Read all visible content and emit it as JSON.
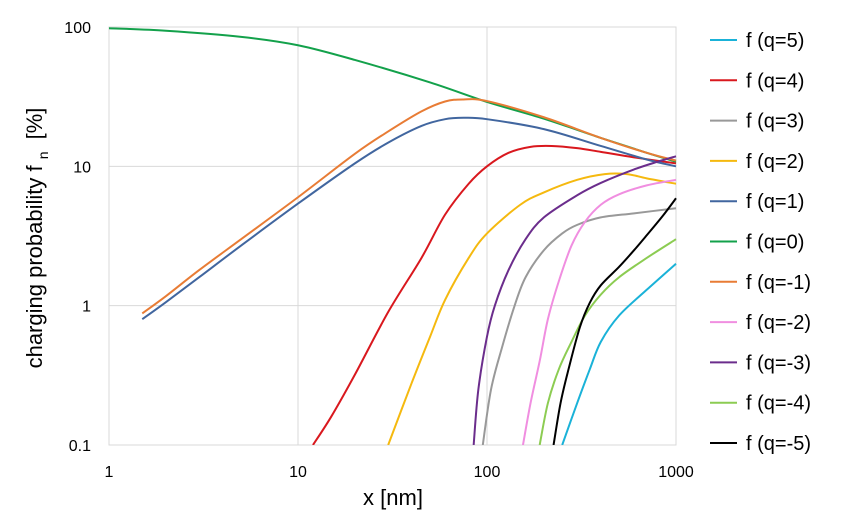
{
  "chart_data": {
    "type": "line",
    "xlabel": "x [nm]",
    "ylabel": "charging probability f",
    "ylabel_subscript": "n",
    "ylabel_unit": "[%]",
    "x_scale": "log",
    "y_scale": "log",
    "xlim": [
      1,
      1000
    ],
    "ylim": [
      0.1,
      100
    ],
    "x_ticks": [
      "1",
      "10",
      "100",
      "1000"
    ],
    "y_ticks": [
      "0.1",
      "1",
      "10",
      "100"
    ],
    "grid": true,
    "legend_position": "right",
    "series": [
      {
        "name": "f (q=5)",
        "color": "#1ab2d8",
        "points": [
          [
            250,
            0.1
          ],
          [
            300,
            0.2
          ],
          [
            350,
            0.35
          ],
          [
            400,
            0.55
          ],
          [
            500,
            0.85
          ],
          [
            700,
            1.3
          ],
          [
            1000,
            2.0
          ]
        ]
      },
      {
        "name": "f (q=4)",
        "color": "#d9181e",
        "points": [
          [
            12,
            0.1
          ],
          [
            15,
            0.16
          ],
          [
            20,
            0.32
          ],
          [
            30,
            0.9
          ],
          [
            45,
            2.2
          ],
          [
            60,
            4.5
          ],
          [
            80,
            7.5
          ],
          [
            100,
            10
          ],
          [
            130,
            12.5
          ],
          [
            170,
            13.8
          ],
          [
            220,
            14.0
          ],
          [
            300,
            13.5
          ],
          [
            400,
            12.7
          ],
          [
            600,
            11.6
          ],
          [
            1000,
            10.5
          ]
        ]
      },
      {
        "name": "f (q=3)",
        "color": "#999999",
        "points": [
          [
            95,
            0.1
          ],
          [
            105,
            0.25
          ],
          [
            120,
            0.5
          ],
          [
            140,
            1.0
          ],
          [
            160,
            1.6
          ],
          [
            200,
            2.5
          ],
          [
            250,
            3.3
          ],
          [
            300,
            3.8
          ],
          [
            400,
            4.3
          ],
          [
            600,
            4.6
          ],
          [
            1000,
            5.0
          ]
        ]
      },
      {
        "name": "f (q=2)",
        "color": "#f5b90f",
        "points": [
          [
            30,
            0.1
          ],
          [
            40,
            0.28
          ],
          [
            50,
            0.6
          ],
          [
            60,
            1.1
          ],
          [
            80,
            2.2
          ],
          [
            100,
            3.3
          ],
          [
            150,
            5.3
          ],
          [
            200,
            6.5
          ],
          [
            300,
            8.0
          ],
          [
            420,
            8.8
          ],
          [
            550,
            8.8
          ],
          [
            700,
            8.2
          ],
          [
            1000,
            7.5
          ]
        ]
      },
      {
        "name": "f (q=1)",
        "color": "#41669f",
        "points": [
          [
            1.5,
            0.8
          ],
          [
            2,
            1.06
          ],
          [
            3,
            1.6
          ],
          [
            5,
            2.7
          ],
          [
            10,
            5.4
          ],
          [
            20,
            10.5
          ],
          [
            30,
            14.8
          ],
          [
            45,
            19.5
          ],
          [
            60,
            21.8
          ],
          [
            75,
            22.3
          ],
          [
            100,
            21.8
          ],
          [
            200,
            18.5
          ],
          [
            400,
            14.0
          ],
          [
            700,
            11.2
          ],
          [
            1000,
            10.0
          ]
        ]
      },
      {
        "name": "f (q=0)",
        "color": "#13a14b",
        "points": [
          [
            1,
            98
          ],
          [
            2,
            94
          ],
          [
            5,
            85
          ],
          [
            10,
            74
          ],
          [
            20,
            58
          ],
          [
            50,
            40
          ],
          [
            100,
            29
          ],
          [
            200,
            22
          ],
          [
            400,
            16
          ],
          [
            700,
            12.5
          ],
          [
            1000,
            10.8
          ]
        ]
      },
      {
        "name": "f (q=-1)",
        "color": "#e87c35",
        "points": [
          [
            1.5,
            0.88
          ],
          [
            2,
            1.17
          ],
          [
            3,
            1.8
          ],
          [
            5,
            3.0
          ],
          [
            10,
            6.0
          ],
          [
            20,
            12.3
          ],
          [
            30,
            17.8
          ],
          [
            45,
            24.8
          ],
          [
            60,
            29.2
          ],
          [
            75,
            30.2
          ],
          [
            100,
            29.4
          ],
          [
            200,
            22.5
          ],
          [
            400,
            16.0
          ],
          [
            700,
            12.5
          ],
          [
            1000,
            11.0
          ]
        ]
      },
      {
        "name": "f (q=-2)",
        "color": "#f08ee0",
        "points": [
          [
            155,
            0.1
          ],
          [
            170,
            0.2
          ],
          [
            190,
            0.4
          ],
          [
            210,
            0.8
          ],
          [
            240,
            1.5
          ],
          [
            280,
            2.7
          ],
          [
            330,
            4.0
          ],
          [
            400,
            5.3
          ],
          [
            500,
            6.3
          ],
          [
            700,
            7.3
          ],
          [
            1000,
            8.0
          ]
        ]
      },
      {
        "name": "f (q=-3)",
        "color": "#6b2d8c",
        "points": [
          [
            85,
            0.1
          ],
          [
            90,
            0.25
          ],
          [
            100,
            0.6
          ],
          [
            110,
            1.0
          ],
          [
            130,
            1.8
          ],
          [
            160,
            3.0
          ],
          [
            200,
            4.3
          ],
          [
            300,
            6.2
          ],
          [
            400,
            7.6
          ],
          [
            600,
            9.5
          ],
          [
            800,
            10.8
          ],
          [
            1000,
            11.8
          ]
        ]
      },
      {
        "name": "f (q=-4)",
        "color": "#8ccc52",
        "points": [
          [
            190,
            0.1
          ],
          [
            210,
            0.2
          ],
          [
            240,
            0.35
          ],
          [
            280,
            0.55
          ],
          [
            330,
            0.85
          ],
          [
            400,
            1.2
          ],
          [
            500,
            1.6
          ],
          [
            700,
            2.2
          ],
          [
            1000,
            3.0
          ]
        ]
      },
      {
        "name": "f (q=-5)",
        "color": "#000000",
        "points": [
          [
            225,
            0.1
          ],
          [
            245,
            0.2
          ],
          [
            270,
            0.35
          ],
          [
            310,
            0.7
          ],
          [
            350,
            1.05
          ],
          [
            400,
            1.4
          ],
          [
            500,
            1.9
          ],
          [
            600,
            2.5
          ],
          [
            700,
            3.2
          ],
          [
            850,
            4.4
          ],
          [
            1000,
            5.9
          ]
        ]
      }
    ]
  }
}
